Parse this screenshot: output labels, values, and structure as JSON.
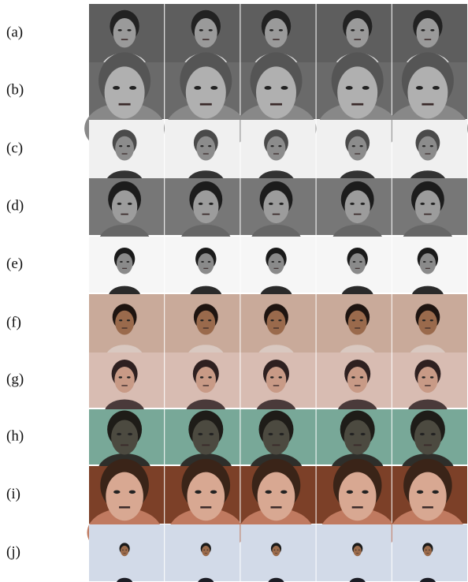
{
  "figure": {
    "rows": [
      {
        "label": "(a)"
      },
      {
        "label": "(b)"
      },
      {
        "label": "(c)"
      },
      {
        "label": "(d)"
      },
      {
        "label": "(e)"
      },
      {
        "label": "(f)"
      },
      {
        "label": "(g)"
      },
      {
        "label": "(h)"
      },
      {
        "label": "(i)"
      },
      {
        "label": "(j)"
      }
    ]
  }
}
